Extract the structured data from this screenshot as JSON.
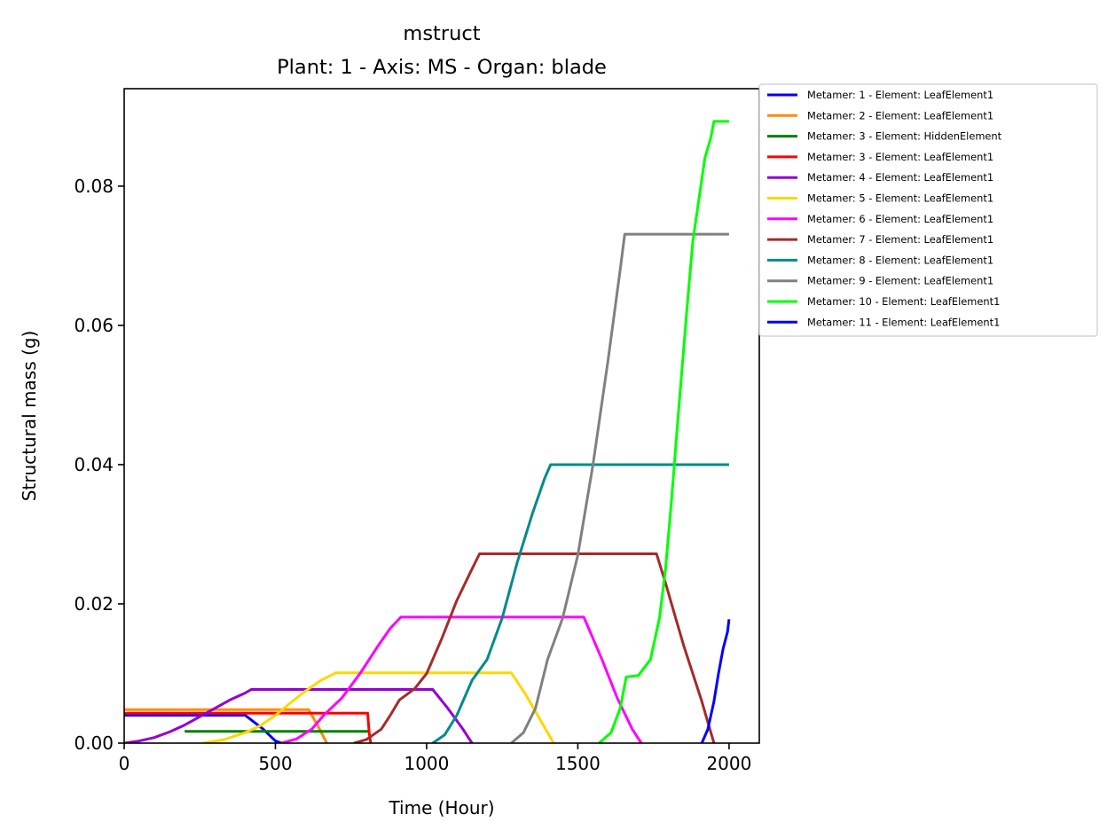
{
  "chart_data": {
    "type": "line",
    "title": "mstruct",
    "subtitle": "Plant: 1 - Axis: MS - Organ: blade",
    "xlabel": "Time (Hour)",
    "ylabel": "Structural mass (g)",
    "xlim": [
      0,
      2100
    ],
    "ylim": [
      0,
      0.094
    ],
    "xticks": [
      0,
      500,
      1000,
      1500,
      2000
    ],
    "xtick_labels": [
      "0",
      "500",
      "1000",
      "1500",
      "2000"
    ],
    "yticks": [
      0,
      0.02,
      0.04,
      0.06,
      0.08
    ],
    "ytick_labels": [
      "0.00",
      "0.02",
      "0.04",
      "0.06",
      "0.08"
    ],
    "grid": false,
    "legend_position": "outside-top-right",
    "series": [
      {
        "name": "Metamer: 1 - Element: LeafElement1",
        "color": "#0000ff",
        "points": [
          [
            0,
            0.004
          ],
          [
            400,
            0.004
          ],
          [
            430,
            0.003
          ],
          [
            460,
            0.002
          ],
          [
            500,
            0.0003
          ],
          [
            520,
            0
          ]
        ]
      },
      {
        "name": "Metamer: 2 - Element: LeafElement1",
        "color": "#ff8c00",
        "points": [
          [
            0,
            0.0048
          ],
          [
            610,
            0.0048
          ],
          [
            640,
            0.0025
          ],
          [
            670,
            0
          ]
        ]
      },
      {
        "name": "Metamer: 3 - Element: HiddenElement",
        "color": "#008000",
        "points": [
          [
            200,
            0.0017
          ],
          [
            810,
            0.0017
          ]
        ]
      },
      {
        "name": "Metamer: 3 - Element: LeafElement1",
        "color": "#ff0000",
        "points": [
          [
            0,
            0.0043
          ],
          [
            805,
            0.0043
          ],
          [
            810,
            0.0015
          ],
          [
            815,
            0
          ]
        ]
      },
      {
        "name": "Metamer: 4 - Element: LeafElement1",
        "color": "#9400d3",
        "points": [
          [
            0,
            0
          ],
          [
            50,
            0.0003
          ],
          [
            100,
            0.0008
          ],
          [
            150,
            0.0016
          ],
          [
            200,
            0.0026
          ],
          [
            250,
            0.0038
          ],
          [
            300,
            0.005
          ],
          [
            350,
            0.0062
          ],
          [
            400,
            0.0072
          ],
          [
            420,
            0.0077
          ],
          [
            1020,
            0.0077
          ],
          [
            1070,
            0.005
          ],
          [
            1120,
            0.002
          ],
          [
            1150,
            0
          ]
        ]
      },
      {
        "name": "Metamer: 5 - Element: LeafElement1",
        "color": "#ffd700",
        "points": [
          [
            260,
            0
          ],
          [
            330,
            0.0005
          ],
          [
            400,
            0.0015
          ],
          [
            450,
            0.0025
          ],
          [
            500,
            0.004
          ],
          [
            550,
            0.0058
          ],
          [
            600,
            0.0075
          ],
          [
            650,
            0.009
          ],
          [
            700,
            0.0101
          ],
          [
            1280,
            0.0101
          ],
          [
            1330,
            0.0068
          ],
          [
            1380,
            0.003
          ],
          [
            1420,
            0
          ]
        ]
      },
      {
        "name": "Metamer: 6 - Element: LeafElement1",
        "color": "#ff00ff",
        "points": [
          [
            520,
            0
          ],
          [
            570,
            0.0006
          ],
          [
            620,
            0.002
          ],
          [
            660,
            0.004
          ],
          [
            720,
            0.0065
          ],
          [
            780,
            0.01
          ],
          [
            840,
            0.014
          ],
          [
            880,
            0.0165
          ],
          [
            915,
            0.0181
          ],
          [
            1520,
            0.0181
          ],
          [
            1580,
            0.012
          ],
          [
            1630,
            0.0065
          ],
          [
            1680,
            0.002
          ],
          [
            1710,
            0
          ]
        ]
      },
      {
        "name": "Metamer: 7 - Element: LeafElement1",
        "color": "#a52a2a",
        "points": [
          [
            760,
            0
          ],
          [
            800,
            0.0005
          ],
          [
            850,
            0.002
          ],
          [
            880,
            0.004
          ],
          [
            910,
            0.0062
          ],
          [
            960,
            0.0078
          ],
          [
            1000,
            0.01
          ],
          [
            1050,
            0.015
          ],
          [
            1100,
            0.0205
          ],
          [
            1150,
            0.025
          ],
          [
            1175,
            0.0272
          ],
          [
            1760,
            0.0272
          ],
          [
            1790,
            0.023
          ],
          [
            1820,
            0.0185
          ],
          [
            1850,
            0.014
          ],
          [
            1880,
            0.01
          ],
          [
            1910,
            0.006
          ],
          [
            1930,
            0.003
          ],
          [
            1950,
            0
          ]
        ]
      },
      {
        "name": "Metamer: 8 - Element: LeafElement1",
        "color": "#008b8b",
        "points": [
          [
            1020,
            0
          ],
          [
            1060,
            0.0012
          ],
          [
            1100,
            0.004
          ],
          [
            1150,
            0.009
          ],
          [
            1200,
            0.012
          ],
          [
            1250,
            0.018
          ],
          [
            1300,
            0.026
          ],
          [
            1350,
            0.033
          ],
          [
            1390,
            0.038
          ],
          [
            1410,
            0.04
          ],
          [
            2000,
            0.04
          ]
        ]
      },
      {
        "name": "Metamer: 9 - Element: LeafElement1",
        "color": "#808080",
        "points": [
          [
            1280,
            0
          ],
          [
            1320,
            0.0015
          ],
          [
            1360,
            0.005
          ],
          [
            1400,
            0.012
          ],
          [
            1450,
            0.018
          ],
          [
            1500,
            0.027
          ],
          [
            1550,
            0.04
          ],
          [
            1600,
            0.055
          ],
          [
            1640,
            0.068
          ],
          [
            1655,
            0.0731
          ],
          [
            2000,
            0.0731
          ]
        ]
      },
      {
        "name": "Metamer: 10 - Element: LeafElement1",
        "color": "#00ff00",
        "points": [
          [
            1570,
            0
          ],
          [
            1610,
            0.0015
          ],
          [
            1640,
            0.005
          ],
          [
            1660,
            0.0095
          ],
          [
            1700,
            0.0097
          ],
          [
            1740,
            0.012
          ],
          [
            1770,
            0.018
          ],
          [
            1790,
            0.025
          ],
          [
            1810,
            0.035
          ],
          [
            1830,
            0.046
          ],
          [
            1860,
            0.062
          ],
          [
            1880,
            0.072
          ],
          [
            1900,
            0.078
          ],
          [
            1920,
            0.084
          ],
          [
            1940,
            0.087
          ],
          [
            1950,
            0.0893
          ],
          [
            2000,
            0.0893
          ]
        ]
      },
      {
        "name": "Metamer: 11 - Element: LeafElement1",
        "color": "#0000ff",
        "points": [
          [
            1910,
            0
          ],
          [
            1930,
            0.002
          ],
          [
            1950,
            0.006
          ],
          [
            1965,
            0.01
          ],
          [
            1980,
            0.0135
          ],
          [
            1995,
            0.016
          ],
          [
            2000,
            0.0178
          ]
        ]
      }
    ]
  }
}
